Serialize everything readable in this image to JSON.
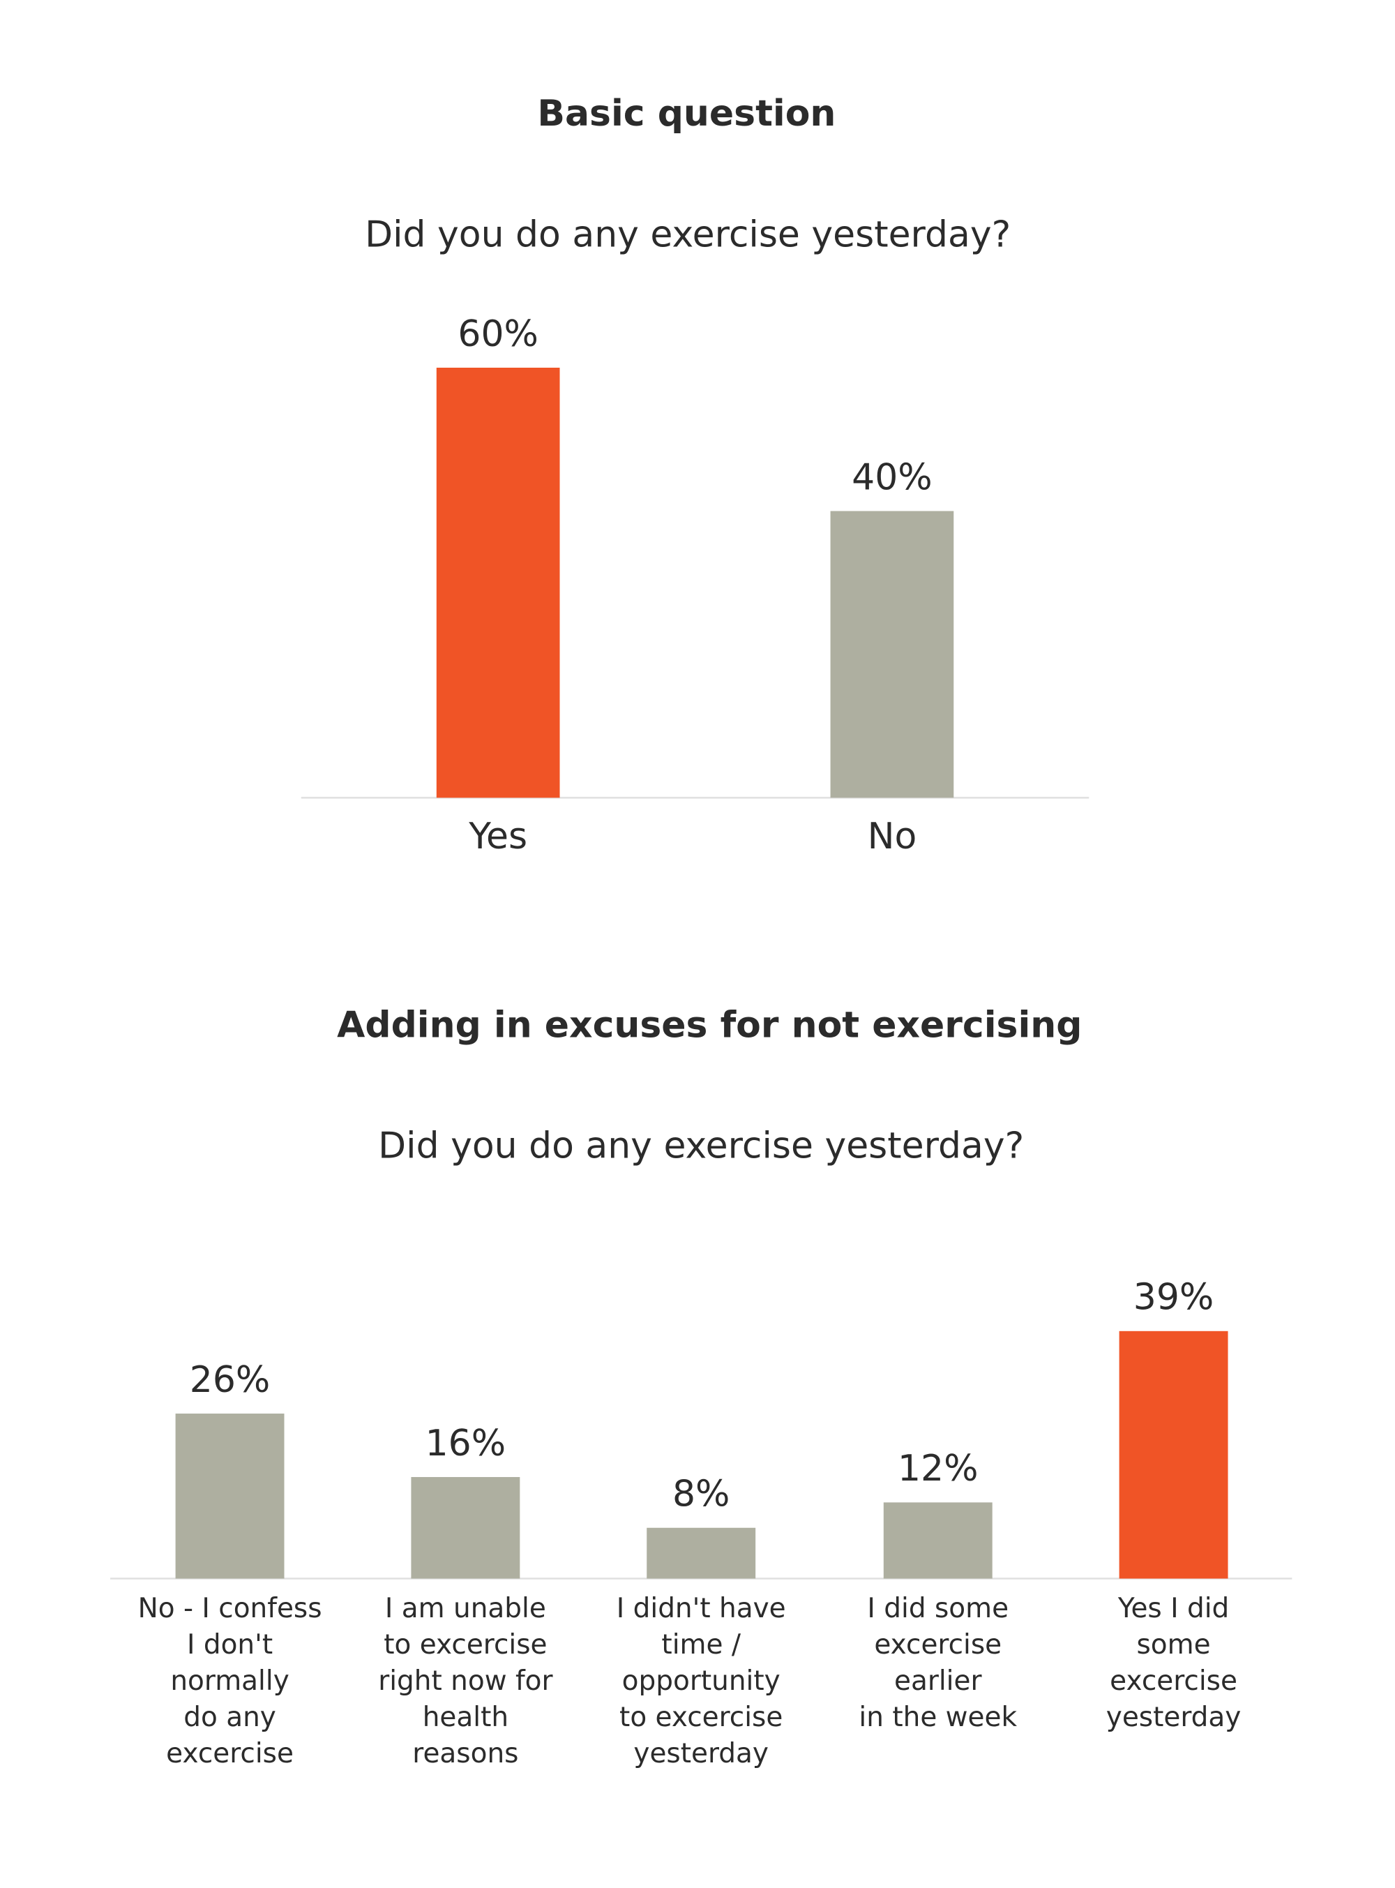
{
  "colors": {
    "highlight": "#F05426",
    "neutral": "#AEAFA0",
    "axis": "#E0E0E0",
    "text": "#2B2B2B"
  },
  "chart_data": [
    {
      "type": "bar",
      "title": "Basic question",
      "subtitle": "Did you do any exercise yesterday?",
      "categories": [
        "Yes",
        "No"
      ],
      "values": [
        60,
        40
      ],
      "value_labels": [
        "60%",
        "40%"
      ],
      "highlight": [
        true,
        false
      ],
      "ylim": [
        0,
        60
      ],
      "grid": false
    },
    {
      "type": "bar",
      "title": "Adding in excuses for not exercising",
      "subtitle": "Did you do any exercise yesterday?",
      "categories": [
        [
          "No - I confess",
          "I don't",
          "normally",
          "do any",
          "excercise"
        ],
        [
          "I am unable",
          "to excercise",
          "right now for",
          "health",
          "reasons"
        ],
        [
          "I didn't have",
          "time /",
          "opportunity",
          "to excercise",
          "yesterday"
        ],
        [
          "I did some",
          "excercise",
          "earlier",
          "in the week"
        ],
        [
          "Yes I did",
          "some",
          "excercise",
          "yesterday"
        ]
      ],
      "values": [
        26,
        16,
        8,
        12,
        39
      ],
      "value_labels": [
        "26%",
        "16%",
        "8%",
        "12%",
        "39%"
      ],
      "highlight": [
        false,
        false,
        false,
        false,
        true
      ],
      "ylim": [
        0,
        39
      ],
      "grid": false
    }
  ]
}
